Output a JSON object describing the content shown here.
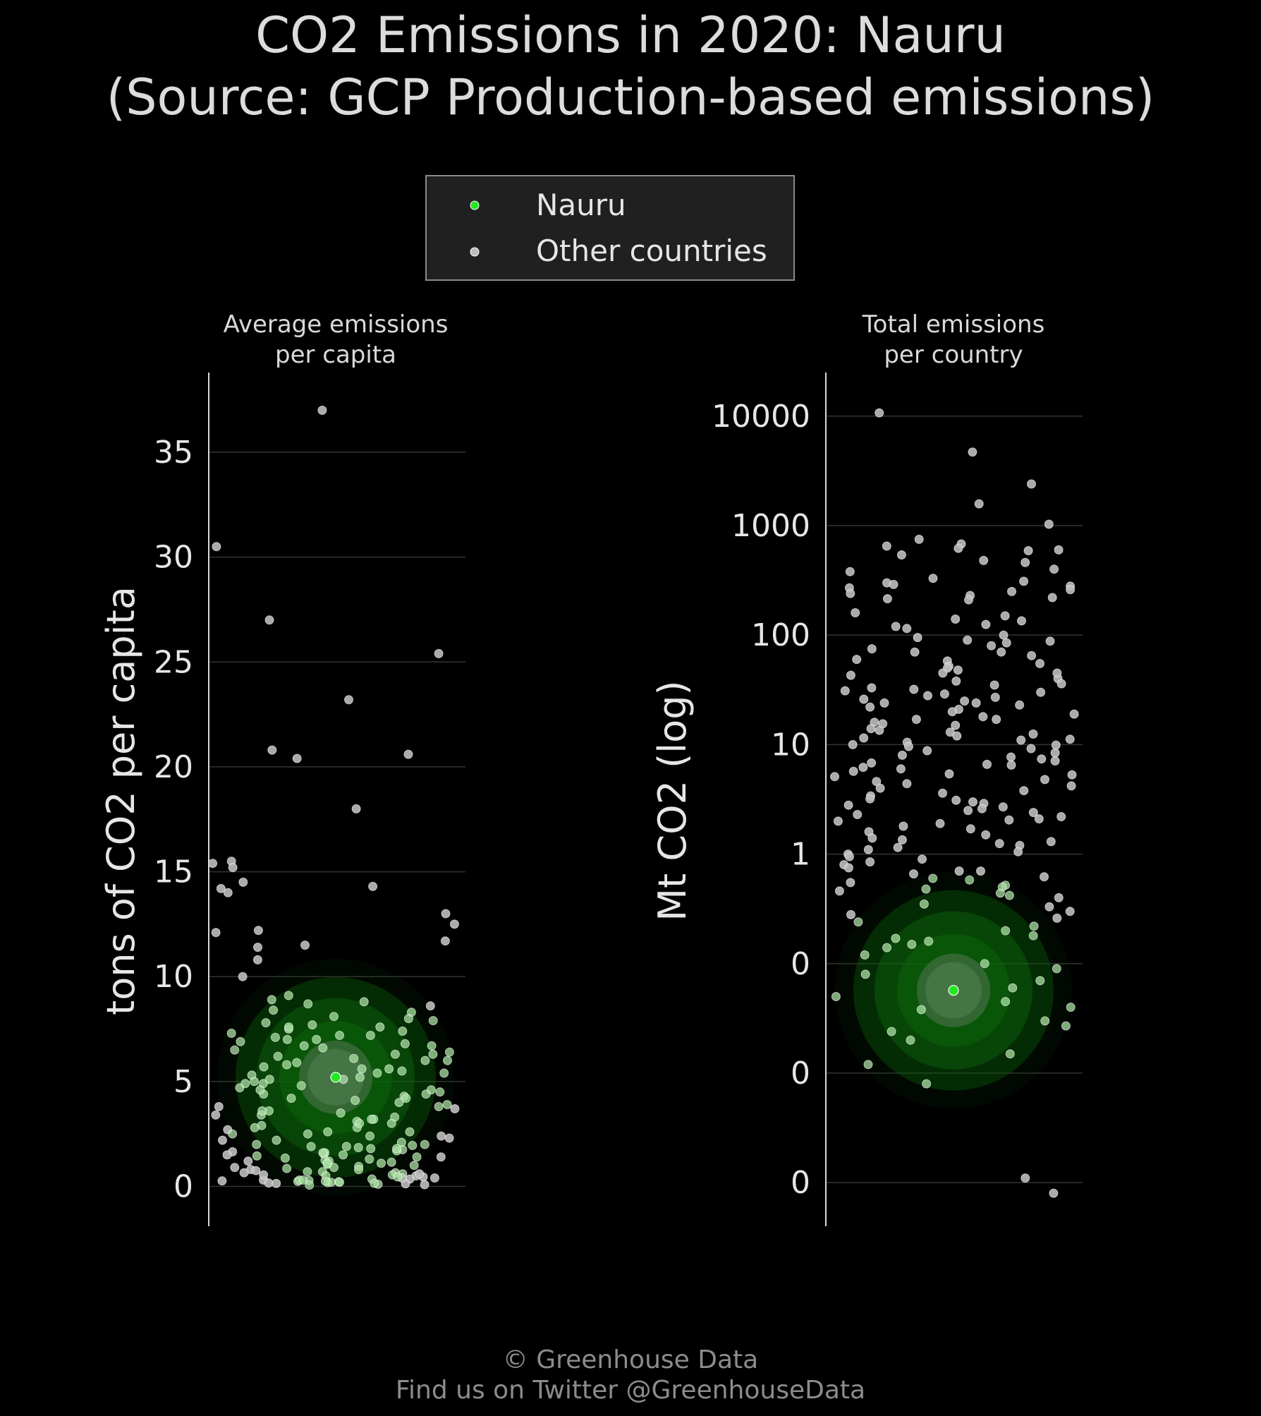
{
  "title_line1": "CO2 Emissions in 2020: Nauru",
  "title_line2": "(Source: GCP Production-based emissions)",
  "legend": {
    "highlight_label": "Nauru",
    "other_label": "Other countries"
  },
  "footer": {
    "line1": "© Greenhouse Data",
    "line2": "Find us on Twitter @GreenhouseData"
  },
  "colors": {
    "background": "#000000",
    "highlight": "#22e822",
    "other": "#bdbdbd",
    "glow": "#0a5a0a",
    "grid": "#333333"
  },
  "chart_data": [
    {
      "type": "scatter",
      "panel_title": "Average emissions\nper capita",
      "ylabel": "tons of CO2 per capita",
      "scale": "linear",
      "ylim": [
        -1.9,
        38.8
      ],
      "yticks": [
        0,
        5,
        10,
        15,
        20,
        25,
        30,
        35
      ],
      "ytick_labels": [
        "0",
        "5",
        "10",
        "15",
        "20",
        "25",
        "30",
        "35"
      ],
      "grid": true,
      "highlight": {
        "name": "Nauru",
        "value": 5.2
      },
      "other_values": [
        37.0,
        30.5,
        27.0,
        25.4,
        23.2,
        20.8,
        20.6,
        20.4,
        18.0,
        15.5,
        15.4,
        15.2,
        14.5,
        14.3,
        14.2,
        14.0,
        13.0,
        12.5,
        12.2,
        12.1,
        11.7,
        11.5,
        11.4,
        10.8,
        10.0,
        9.1,
        8.9,
        8.8,
        8.7,
        8.6,
        8.4,
        8.3,
        8.1,
        8.0,
        7.9,
        7.8,
        7.7,
        7.6,
        7.5,
        7.4,
        7.3,
        7.2,
        7.1,
        7.0,
        6.9,
        6.8,
        6.7,
        6.6,
        6.5,
        6.4,
        6.3,
        6.2,
        6.1,
        6.0,
        5.9,
        5.8,
        5.7,
        5.6,
        5.5,
        5.4,
        5.3,
        5.2,
        5.1,
        5.0,
        4.9,
        4.8,
        4.7,
        4.6,
        4.5,
        4.4,
        4.3,
        4.2,
        4.1,
        4.0,
        3.9,
        3.8,
        3.7,
        3.6,
        3.5,
        3.4,
        3.3,
        3.2,
        3.1,
        3.0,
        2.9,
        2.8,
        2.7,
        2.6,
        2.5,
        2.4,
        2.3,
        2.2,
        2.1,
        2.0,
        1.95,
        1.9,
        1.85,
        1.8,
        1.75,
        1.7,
        1.65,
        1.6,
        1.55,
        1.5,
        1.45,
        1.4,
        1.35,
        1.3,
        1.25,
        1.2,
        1.15,
        1.1,
        1.05,
        1.0,
        0.95,
        0.9,
        0.85,
        0.8,
        0.75,
        0.7,
        0.65,
        0.6,
        0.55,
        0.5,
        0.45,
        0.4,
        0.35,
        0.3,
        0.28,
        0.26,
        0.24,
        0.22,
        0.2,
        0.18,
        0.16,
        0.14,
        0.12,
        0.1,
        0.08,
        0.06,
        7.6,
        6.0,
        5.1,
        4.2,
        3.6,
        2.6,
        1.8,
        1.2,
        0.7,
        0.3,
        0.2,
        0.5,
        2.8,
        3.8,
        4.9,
        6.3,
        7.0,
        2.4,
        1.4,
        0.9,
        0.6,
        0.4,
        3.2,
        5.4,
        6.7,
        1.6,
        2.2,
        0.35,
        0.15,
        0.25,
        4.4,
        3.0,
        1.1,
        0.8,
        5.6,
        7.2,
        2.0,
        0.45,
        1.5,
        3.4,
        4.6,
        0.55,
        1.9,
        2.5,
        0.3,
        0.65
      ]
    },
    {
      "type": "scatter",
      "panel_title": "Total emissions\nper country",
      "ylabel": "Mt CO2 (log)",
      "scale": "log",
      "ylim": [
        0.0004,
        25000
      ],
      "yticks": [
        0.001,
        0.01,
        0.1,
        1,
        10,
        100,
        1000,
        10000
      ],
      "ytick_labels": [
        "0",
        "0",
        "0",
        "1",
        "10",
        "100",
        "1000",
        "10000"
      ],
      "grid": true,
      "highlight": {
        "name": "Nauru",
        "value": 0.057
      },
      "other_values": [
        10700,
        4700,
        2400,
        1580,
        1030,
        750,
        680,
        650,
        620,
        600,
        590,
        540,
        480,
        460,
        400,
        380,
        330,
        310,
        300,
        290,
        280,
        270,
        260,
        250,
        240,
        230,
        220,
        215,
        210,
        160,
        150,
        140,
        135,
        125,
        115,
        100,
        95,
        90,
        88,
        85,
        80,
        75,
        70,
        65,
        60,
        58,
        55,
        52,
        50,
        48,
        45,
        43,
        40,
        38,
        36,
        35,
        33,
        32,
        30,
        29,
        28,
        27,
        26,
        25,
        24,
        23,
        22,
        21,
        20,
        19,
        18,
        17,
        16,
        15.5,
        15,
        14,
        13.5,
        13,
        12.5,
        12,
        11.5,
        11,
        10.5,
        10,
        9.6,
        9.2,
        8.8,
        8.4,
        8.0,
        7.7,
        7.4,
        7.1,
        6.8,
        6.5,
        6.2,
        6.0,
        5.7,
        5.4,
        5.1,
        4.8,
        4.6,
        4.4,
        4.2,
        4.0,
        3.8,
        3.6,
        3.4,
        3.2,
        3.0,
        2.9,
        2.8,
        2.7,
        2.6,
        2.5,
        2.4,
        2.3,
        2.2,
        2.1,
        2.0,
        1.9,
        1.8,
        1.7,
        1.6,
        1.5,
        1.4,
        1.3,
        1.25,
        1.2,
        1.15,
        1.1,
        1.05,
        1.0,
        0.95,
        0.9,
        0.85,
        0.8,
        0.75,
        0.7,
        0.66,
        0.62,
        0.58,
        0.55,
        0.52,
        0.5,
        0.48,
        0.46,
        0.44,
        0.42,
        0.4,
        0.35,
        0.3,
        0.28,
        0.26,
        0.24,
        0.22,
        0.2,
        0.18,
        0.16,
        0.15,
        0.14,
        0.12,
        0.1,
        0.09,
        0.08,
        0.07,
        0.05,
        0.045,
        0.04,
        0.03,
        0.027,
        0.024,
        0.02,
        0.015,
        0.012,
        0.008,
        0.0011,
        0.0008,
        0.7,
        3.1,
        17,
        45,
        120,
        6.6,
        0.33,
        1.35,
        24,
        9.9,
        0.06,
        0.17,
        2.05,
        31,
        0.6,
        5.3,
        70,
        11.2,
        0.038
      ]
    }
  ]
}
